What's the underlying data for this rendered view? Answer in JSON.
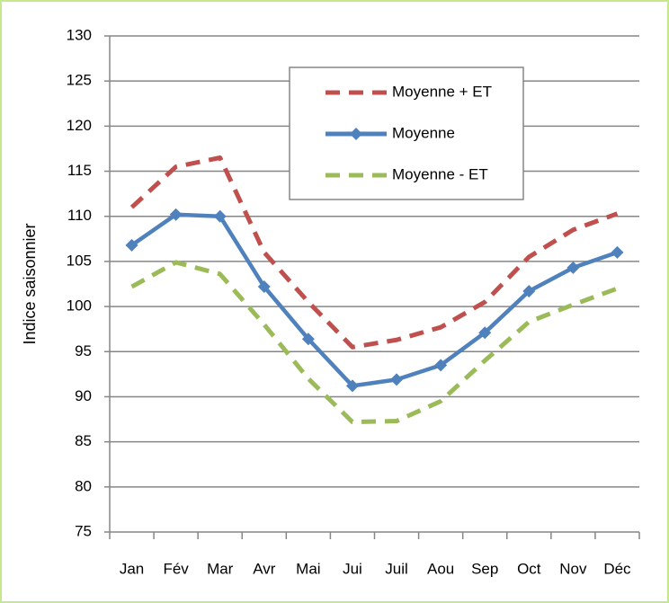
{
  "chart_data": {
    "type": "line",
    "y_label": "Indice saisonnier",
    "categories": [
      "Jan",
      "Fév",
      "Mar",
      "Avr",
      "Mai",
      "Jui",
      "Juil",
      "Aou",
      "Sep",
      "Oct",
      "Nov",
      "Déc"
    ],
    "series": [
      {
        "name": "Moyenne + ET",
        "color": "#c0504d",
        "line_style": "dashed",
        "marker": "none",
        "values": [
          111,
          115.5,
          116.5,
          106,
          100.5,
          95.5,
          96.3,
          97.7,
          100.5,
          105.5,
          108.5,
          110.3
        ]
      },
      {
        "name": "Moyenne",
        "color": "#4f81bd",
        "line_style": "solid",
        "marker": "diamond",
        "values": [
          106.8,
          110.2,
          110,
          102.2,
          96.4,
          91.2,
          91.9,
          93.5,
          97.1,
          101.7,
          104.3,
          106
        ]
      },
      {
        "name": "Moyenne - ET",
        "color": "#9bbb59",
        "line_style": "dashed",
        "marker": "none",
        "values": [
          102.2,
          104.9,
          103.6,
          98,
          92,
          87.2,
          87.3,
          89.5,
          94,
          98.3,
          100.2,
          102
        ]
      }
    ],
    "ylim": [
      75,
      130
    ],
    "yticks": [
      75,
      80,
      85,
      90,
      95,
      100,
      105,
      110,
      115,
      120,
      125,
      130
    ],
    "grid": true,
    "legend": "top-right"
  }
}
